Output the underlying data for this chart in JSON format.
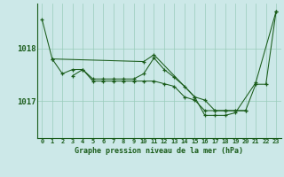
{
  "title": "Graphe pression niveau de la mer (hPa)",
  "bg_color": "#cce8e8",
  "line_color": "#1a5c1a",
  "grid_color": "#99ccbb",
  "x_labels": [
    "0",
    "1",
    "2",
    "3",
    "4",
    "5",
    "6",
    "7",
    "8",
    "9",
    "10",
    "11",
    "12",
    "13",
    "14",
    "15",
    "16",
    "17",
    "18",
    "19",
    "20",
    "21",
    "22",
    "23"
  ],
  "ylim": [
    1016.3,
    1018.85
  ],
  "yticks": [
    1017.0,
    1018.0
  ],
  "xlim": [
    -0.5,
    23.5
  ],
  "seg1_x": [
    0,
    1,
    10,
    11,
    15,
    16,
    17,
    18,
    19,
    21,
    23
  ],
  "seg1_y": [
    1018.55,
    1017.8,
    1017.75,
    1017.88,
    1017.08,
    1016.73,
    1016.73,
    1016.73,
    1016.78,
    1017.35,
    1018.7
  ],
  "seg2_x": [
    1,
    2,
    3,
    4,
    5,
    6,
    7,
    8,
    9,
    10,
    11,
    12,
    13,
    14,
    15,
    16,
    17,
    18,
    19,
    20
  ],
  "seg2_y": [
    1017.8,
    1017.52,
    1017.6,
    1017.6,
    1017.38,
    1017.38,
    1017.38,
    1017.38,
    1017.38,
    1017.38,
    1017.38,
    1017.33,
    1017.28,
    1017.08,
    1017.02,
    1016.82,
    1016.82,
    1016.82,
    1016.82,
    1016.82
  ],
  "seg3_x": [
    3,
    4,
    5,
    6,
    7,
    8,
    9,
    10,
    11,
    12,
    13,
    14,
    15,
    16,
    17,
    18,
    19,
    20,
    21,
    22,
    23
  ],
  "seg3_y": [
    1017.48,
    1017.6,
    1017.42,
    1017.42,
    1017.42,
    1017.42,
    1017.42,
    1017.52,
    1017.82,
    1017.6,
    1017.45,
    1017.28,
    1017.08,
    1017.02,
    1016.82,
    1016.82,
    1016.82,
    1016.82,
    1017.32,
    1017.32,
    1018.7
  ]
}
